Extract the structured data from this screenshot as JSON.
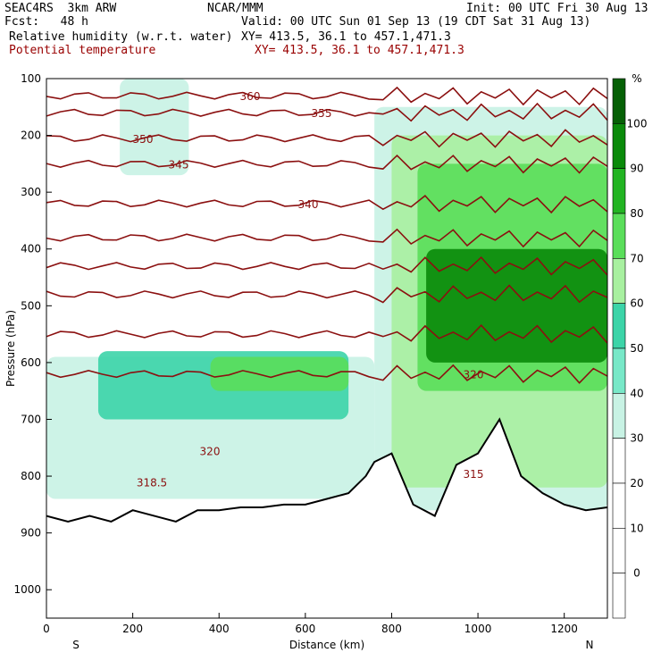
{
  "header": {
    "model": "SEAC4RS  3km ARW",
    "org": "NCAR/MMM",
    "init": "Init: 00 UTC Fri 30 Aug 13",
    "fcst": "Fcst:   48 h",
    "valid": "Valid: 00 UTC Sun 01 Sep 13 (19 CDT Sat 31 Aug 13)",
    "field1": "Relative humidity (w.r.t. water)",
    "field1_xy": "XY= 413.5, 36.1 to 457.1,471.3",
    "field2": "Potential temperature",
    "field2_xy": "XY= 413.5, 36.1 to 457.1,471.3"
  },
  "chart_data": {
    "type": "heatmap",
    "title": "",
    "xlabel": "Distance (km)",
    "ylabel": "Pressure (hPa)",
    "xlim": [
      0,
      1300
    ],
    "ylim": [
      1050,
      100
    ],
    "x_ticks": [
      0,
      200,
      400,
      600,
      800,
      1000,
      1200
    ],
    "y_ticks": [
      100,
      200,
      300,
      400,
      500,
      600,
      700,
      800,
      900,
      1000
    ],
    "x_end_labels": {
      "left": "S",
      "right": "N"
    },
    "colorbar": {
      "unit": "%",
      "ticks": [
        0,
        10,
        20,
        30,
        40,
        50,
        60,
        70,
        80,
        90,
        100
      ],
      "colors": [
        "#ffffff",
        "#ffffff",
        "#ffffff",
        "#ffffff",
        "#c8f2e4",
        "#78e8c8",
        "#3cd4a8",
        "#a8f0a0",
        "#5ade5a",
        "#22b422",
        "#0a8a0a",
        "#056005"
      ]
    },
    "rh_regions": [
      {
        "rh": 35,
        "x": [
          0,
          760
        ],
        "p": [
          590,
          840
        ]
      },
      {
        "rh": 50,
        "x": [
          120,
          700
        ],
        "p": [
          580,
          700
        ]
      },
      {
        "rh": 75,
        "x": [
          380,
          700
        ],
        "p": [
          590,
          650
        ]
      },
      {
        "rh": 35,
        "x": [
          170,
          330
        ],
        "p": [
          100,
          270
        ]
      },
      {
        "rh": 35,
        "x": [
          760,
          1300
        ],
        "p": [
          150,
          860
        ]
      },
      {
        "rh": 60,
        "x": [
          800,
          1300
        ],
        "p": [
          200,
          820
        ]
      },
      {
        "rh": 75,
        "x": [
          860,
          1300
        ],
        "p": [
          250,
          650
        ]
      },
      {
        "rh": 95,
        "x": [
          880,
          1300
        ],
        "p": [
          400,
          600
        ]
      }
    ],
    "theta_contours": [
      {
        "label": "360",
        "p": 130
      },
      {
        "label": "355",
        "p": 160
      },
      {
        "label": "350",
        "p": 205
      },
      {
        "label": "345",
        "p": 250
      },
      {
        "label": "340",
        "p": 320
      },
      {
        "label": "",
        "p": 380
      },
      {
        "label": "",
        "p": 430
      },
      {
        "label": "",
        "p": 480
      },
      {
        "label": "",
        "p": 550
      },
      {
        "label": "320",
        "p": 620
      },
      {
        "label": "318.5",
        "p": 810
      },
      {
        "label": "320",
        "p": 755
      },
      {
        "label": "315",
        "p": 795
      }
    ],
    "terrain_p": [
      [
        0,
        870
      ],
      [
        50,
        880
      ],
      [
        100,
        870
      ],
      [
        150,
        880
      ],
      [
        200,
        860
      ],
      [
        250,
        870
      ],
      [
        300,
        880
      ],
      [
        350,
        860
      ],
      [
        400,
        860
      ],
      [
        450,
        855
      ],
      [
        500,
        855
      ],
      [
        550,
        850
      ],
      [
        600,
        850
      ],
      [
        650,
        840
      ],
      [
        700,
        830
      ],
      [
        740,
        800
      ],
      [
        760,
        775
      ],
      [
        800,
        760
      ],
      [
        850,
        850
      ],
      [
        900,
        870
      ],
      [
        950,
        780
      ],
      [
        1000,
        760
      ],
      [
        1050,
        700
      ],
      [
        1100,
        800
      ],
      [
        1150,
        830
      ],
      [
        1200,
        850
      ],
      [
        1250,
        860
      ],
      [
        1300,
        855
      ]
    ]
  },
  "colorbar_labels": [
    "%",
    "100",
    "90",
    "80",
    "70",
    "60",
    "50",
    "40",
    "30",
    "20",
    "10",
    "0"
  ]
}
